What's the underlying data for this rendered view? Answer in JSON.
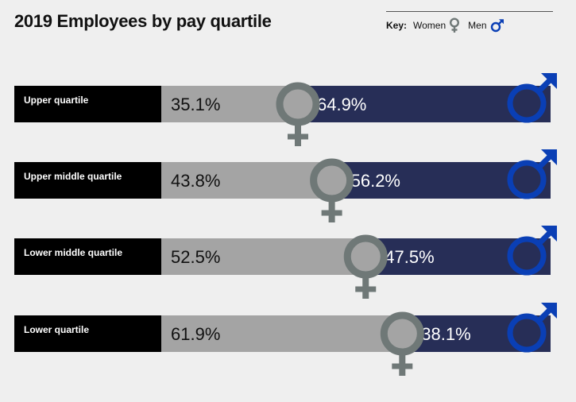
{
  "title": "2019 Employees by pay quartile",
  "key": {
    "label": "Key:",
    "women": "Women",
    "men": "Men"
  },
  "colors": {
    "label_bg": "#000000",
    "women_bar": "#a4a4a4",
    "men_bar": "#272e57",
    "women_symbol": "#6f7877",
    "men_symbol": "#0a3fb5"
  },
  "chart_data": {
    "type": "bar",
    "stacked": true,
    "orientation": "horizontal",
    "title": "2019 Employees by pay quartile",
    "categories": [
      "Upper quartile",
      "Upper middle quartile",
      "Lower middle quartile",
      "Lower quartile"
    ],
    "series": [
      {
        "name": "Women",
        "values": [
          35.1,
          43.8,
          52.5,
          61.9
        ],
        "labels": [
          "35.1%",
          "43.8%",
          "52.5%",
          "61.9%"
        ]
      },
      {
        "name": "Men",
        "values": [
          64.9,
          56.2,
          47.5,
          38.1
        ],
        "labels": [
          "64.9%",
          "56.2%",
          "47.5%",
          "38.1%"
        ]
      }
    ],
    "xlim": [
      0,
      100
    ],
    "legend": "top-right"
  }
}
